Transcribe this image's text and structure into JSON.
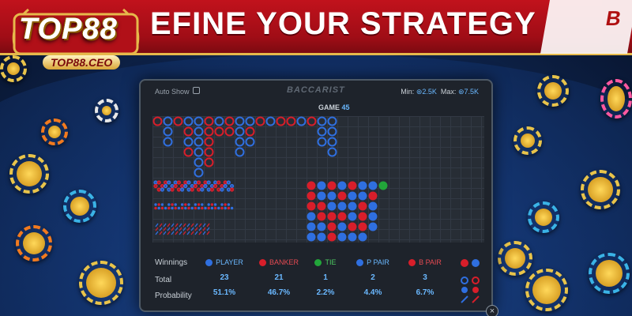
{
  "banner": {
    "title": "EFINE YOUR STRATEGY"
  },
  "logo": {
    "brand": "TOP88",
    "url": "TOP88.CEO"
  },
  "card": {
    "letter": "B"
  },
  "panel": {
    "auto_show_label": "Auto Show",
    "brand": "BACCARIST",
    "min_label": "Min:",
    "min_value": "2.5K",
    "max_label": "Max:",
    "max_value": "7.5K",
    "game_label": "GAME",
    "game_number": "45"
  },
  "stats": {
    "winnings_label": "Winnings",
    "total_label": "Total",
    "probability_label": "Probability",
    "columns": [
      {
        "name": "PLAYER",
        "color": "#2f6fe0",
        "total": "23",
        "probability": "51.1%"
      },
      {
        "name": "BANKER",
        "color": "#d81e2a",
        "total": "21",
        "probability": "46.7%"
      },
      {
        "name": "TIE",
        "color": "#22a63a",
        "total": "1",
        "probability": "2.2%"
      },
      {
        "name": "P PAIR",
        "color": "#2f6fe0",
        "total": "2",
        "probability": "4.4%"
      },
      {
        "name": "B PAIR",
        "color": "#d81e2a",
        "total": "3",
        "probability": "6.7%"
      }
    ]
  },
  "colors": {
    "player": "#2f6fe0",
    "banker": "#d81e2a",
    "tie": "#22a63a",
    "accent": "#6ab8ff",
    "banner": "#c1121c"
  },
  "icons": [
    "coin-icon",
    "close-icon",
    "checkbox-icon"
  ]
}
